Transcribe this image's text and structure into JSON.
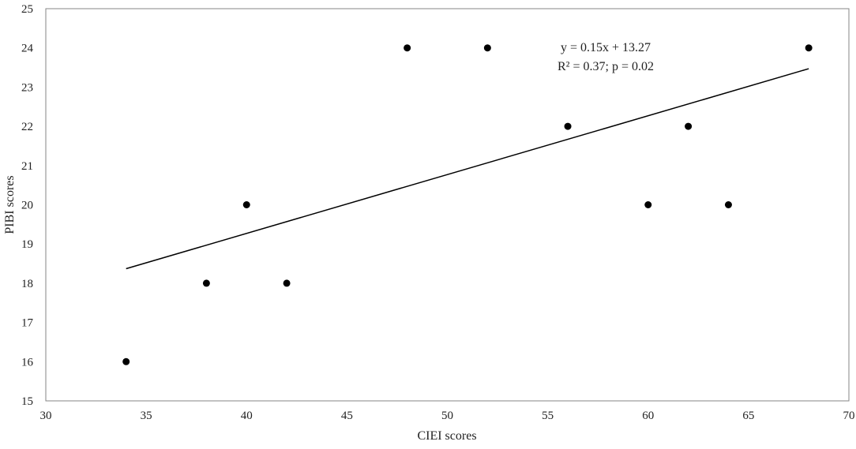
{
  "chart_data": {
    "type": "scatter",
    "title": "",
    "xlabel": "CIEI scores",
    "ylabel": "PIBI scores",
    "xlim": [
      30,
      70
    ],
    "ylim": [
      15,
      25
    ],
    "xticks": [
      30,
      35,
      40,
      45,
      50,
      55,
      60,
      65,
      70
    ],
    "yticks": [
      15,
      16,
      17,
      18,
      19,
      20,
      21,
      22,
      23,
      24,
      25
    ],
    "grid": false,
    "legend": "none",
    "series": [
      {
        "points": [
          {
            "x": 34,
            "y": 16
          },
          {
            "x": 38,
            "y": 18
          },
          {
            "x": 40,
            "y": 20
          },
          {
            "x": 42,
            "y": 18
          },
          {
            "x": 48,
            "y": 24
          },
          {
            "x": 52,
            "y": 24
          },
          {
            "x": 56,
            "y": 22
          },
          {
            "x": 60,
            "y": 20
          },
          {
            "x": 62,
            "y": 22
          },
          {
            "x": 64,
            "y": 20
          },
          {
            "x": 68,
            "y": 24
          }
        ],
        "color": "#000000"
      }
    ],
    "trendline": {
      "type": "linear",
      "slope": 0.15,
      "intercept": 13.27,
      "x_range": [
        34,
        68
      ],
      "color": "#000000"
    },
    "annotations": [
      "y = 0.15x + 13.27",
      "R² = 0.37; p = 0.02"
    ]
  }
}
